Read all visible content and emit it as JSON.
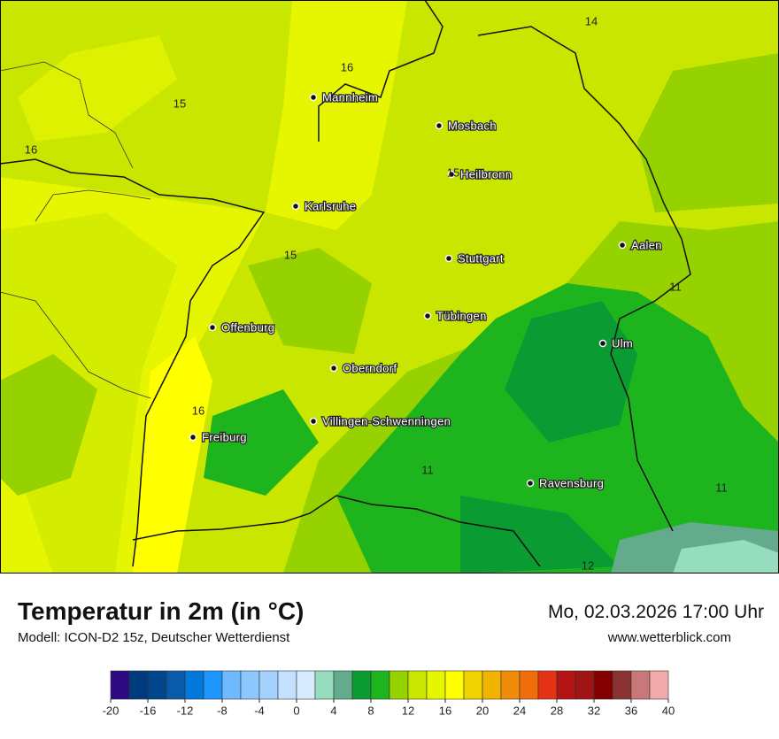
{
  "header": {
    "title": "Temperatur in 2m (in °C)",
    "model": "Modell: ICON-D2 15z, Deutscher Wetterdienst",
    "datetime": "Mo, 02.03.2026 17:00 Uhr",
    "website": "www.wetterblick.com"
  },
  "cities": [
    "Mannheim",
    "Mosbach",
    "Heilbronn",
    "Karlsruhe",
    "Aalen",
    "Stuttgart",
    "Tübingen",
    "Offenburg",
    "Ulm",
    "Oberndorf",
    "Villingen-Schwenningen",
    "Freiburg",
    "Ravensburg"
  ],
  "contour_labels": [
    16,
    15,
    16,
    15,
    15,
    14,
    11,
    16,
    11,
    11,
    12
  ],
  "colorbar": {
    "range": [
      -20,
      40
    ],
    "ticks": [
      -20,
      -16,
      -12,
      -8,
      -4,
      0,
      4,
      8,
      12,
      16,
      20,
      24,
      28,
      32,
      36,
      40
    ],
    "colors": [
      "#2e0a82",
      "#003c7d",
      "#00468c",
      "#0a5aaa",
      "#0078dc",
      "#1e96ff",
      "#6eb9ff",
      "#8cc8ff",
      "#a5d2ff",
      "#c3e1ff",
      "#d7ebff",
      "#96dcbe",
      "#64aa8c",
      "#0a9b32",
      "#1eb41e",
      "#96d200",
      "#c8e600",
      "#e6f500",
      "#ffff00",
      "#f0d200",
      "#f0b400",
      "#f08c0a",
      "#f06e0a",
      "#e63214",
      "#b41414",
      "#a01414",
      "#820000",
      "#8c3232",
      "#c87878",
      "#f0aaaa"
    ]
  }
}
